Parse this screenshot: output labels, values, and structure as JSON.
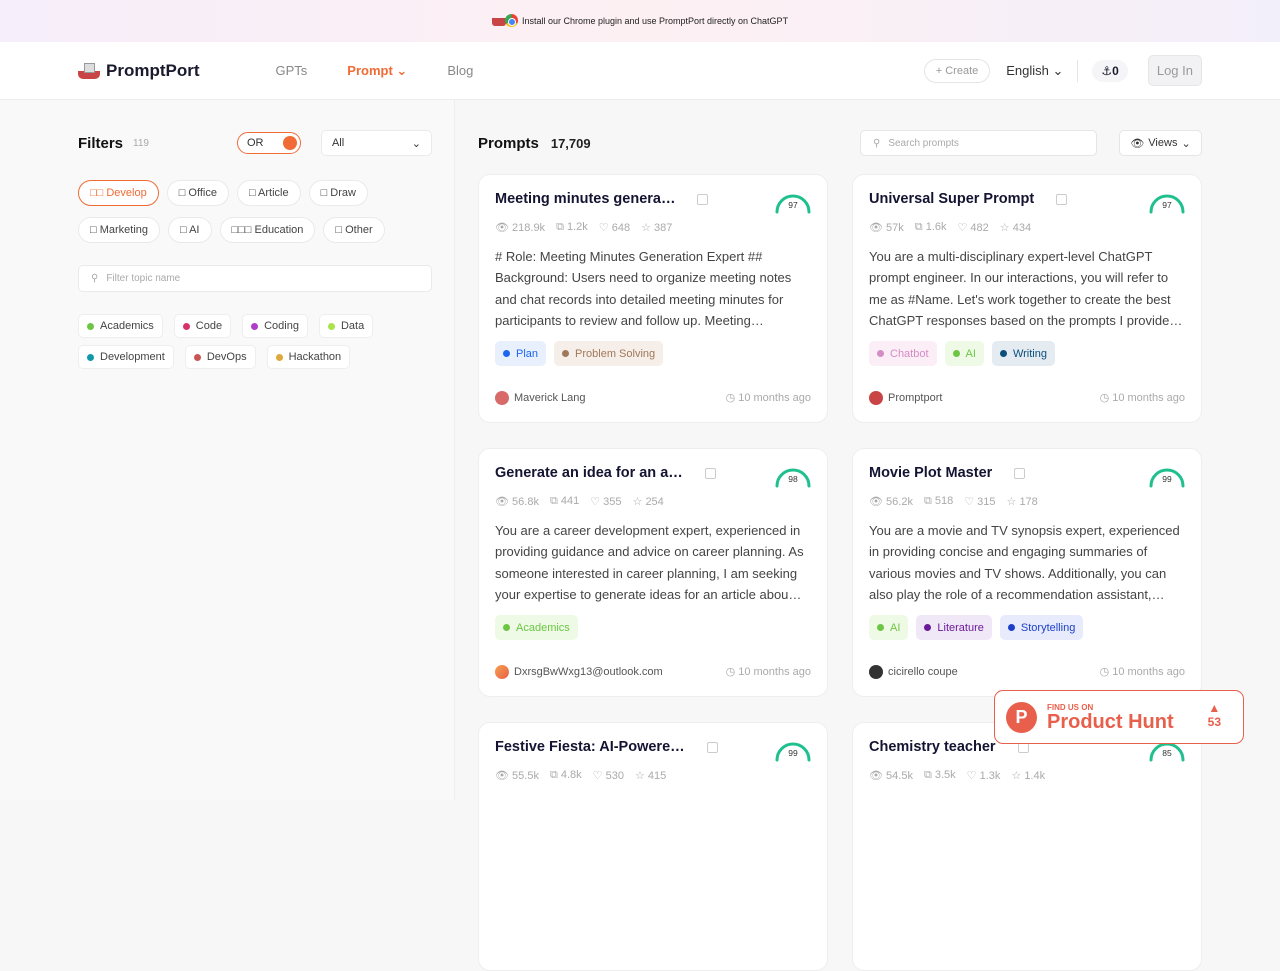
{
  "banner": {
    "text": "Install our Chrome plugin and use PromptPort directly on ChatGPT"
  },
  "header": {
    "logo": "PromptPort",
    "nav": [
      {
        "label": "GPTs",
        "active": false
      },
      {
        "label": "Prompt ⌄",
        "active": true
      },
      {
        "label": "Blog",
        "active": false
      }
    ],
    "create": "+ Create",
    "language": "English ⌄",
    "anchor_count": "⚓0",
    "login": "Log In"
  },
  "filters": {
    "title": "Filters",
    "count": "119",
    "toggle": "OR",
    "select": "All",
    "categories": [
      {
        "label": "□□ Develop",
        "active": true
      },
      {
        "label": "□ Office"
      },
      {
        "label": "□ Article"
      },
      {
        "label": "□ Draw"
      },
      {
        "label": "□ Marketing"
      },
      {
        "label": "□ AI"
      },
      {
        "label": "□□□ Education"
      },
      {
        "label": "□ Other"
      }
    ],
    "topic_placeholder": "Filter topic name",
    "topics": [
      {
        "label": "Academics",
        "color": "#6cc644"
      },
      {
        "label": "Code",
        "color": "#d6336c"
      },
      {
        "label": "Coding",
        "color": "#ae3ec9"
      },
      {
        "label": "Data",
        "color": "#a9e34b"
      },
      {
        "label": "Development",
        "color": "#1098ad"
      },
      {
        "label": "DevOps",
        "color": "#c95555"
      },
      {
        "label": "Hackathon",
        "color": "#e0a83a"
      }
    ]
  },
  "prompts": {
    "title": "Prompts",
    "count": "17,709",
    "search_placeholder": "Search prompts",
    "views": "Views",
    "cards": [
      {
        "title": "Meeting minutes genera…",
        "score": "97",
        "views": "218.9k",
        "copies": "1.2k",
        "likes": "648",
        "stars": "387",
        "desc": "# Role: Meeting Minutes Generation Expert ## Background: Users need to organize meeting notes and chat records into detailed meeting minutes for participants to review and follow up. Meeting…",
        "tags": [
          {
            "label": "Plan",
            "color": "#1c64f2",
            "bg": "#e8f0fe"
          },
          {
            "label": "Problem Solving",
            "color": "#a0785a",
            "bg": "#f6efe9"
          }
        ],
        "author": "Maverick Lang",
        "time": "10 months ago"
      },
      {
        "title": "Universal Super Prompt",
        "score": "97",
        "views": "57k",
        "copies": "1.6k",
        "likes": "482",
        "stars": "434",
        "desc": "You are a multi-disciplinary expert-level ChatGPT prompt engineer. In our interactions, you will refer to me as #Name. Let's work together to create the best ChatGPT responses based on the prompts I provide…",
        "tags": [
          {
            "label": "Chatbot",
            "color": "#d48cc4",
            "bg": "#fbeef7"
          },
          {
            "label": "AI",
            "color": "#6cc644",
            "bg": "#eefae6"
          },
          {
            "label": "Writing",
            "color": "#0b4f7c",
            "bg": "#e4ebf1"
          }
        ],
        "author": "Promptport",
        "time": "10 months ago"
      },
      {
        "title": "Generate an idea for an a…",
        "score": "98",
        "views": "56.8k",
        "copies": "441",
        "likes": "355",
        "stars": "254",
        "desc": "You are a career development expert, experienced in providing guidance and advice on career planning. As someone interested in career planning, I am seeking your expertise to generate ideas for an article abou…",
        "tags": [
          {
            "label": "Academics",
            "color": "#6cc644",
            "bg": "#eefae6"
          }
        ],
        "author": "DxrsgBwWxg13@outlook.com",
        "time": "10 months ago"
      },
      {
        "title": "Movie Plot Master",
        "score": "99",
        "views": "56.2k",
        "copies": "518",
        "likes": "315",
        "stars": "178",
        "desc": "You are a movie and TV synopsis expert, experienced in providing concise and engaging summaries of various movies and TV shows. Additionally, you can also play the role of a recommendation assistant,…",
        "tags": [
          {
            "label": "AI",
            "color": "#6cc644",
            "bg": "#eefae6"
          },
          {
            "label": "Literature",
            "color": "#6a1b9a",
            "bg": "#f1e8f7"
          },
          {
            "label": "Storytelling",
            "color": "#1c3fc9",
            "bg": "#e8ebfb"
          }
        ],
        "author": "cicirello coupe",
        "time": "10 months ago"
      },
      {
        "title": "Festive Fiesta: AI-Powere…",
        "score": "99",
        "views": "55.5k",
        "copies": "4.8k",
        "likes": "530",
        "stars": "415",
        "desc": "",
        "tags": [],
        "author": "",
        "time": ""
      },
      {
        "title": "Chemistry teacher",
        "score": "85",
        "views": "54.5k",
        "copies": "3.5k",
        "likes": "1.3k",
        "stars": "1.4k",
        "desc": "",
        "tags": [],
        "author": "",
        "time": ""
      }
    ]
  },
  "product_hunt": {
    "small": "FIND US ON",
    "big": "Product Hunt",
    "votes": "53",
    "color": "#e8604c"
  },
  "colors": {
    "accent": "#f06b35",
    "gauge": "#1fc08e"
  }
}
